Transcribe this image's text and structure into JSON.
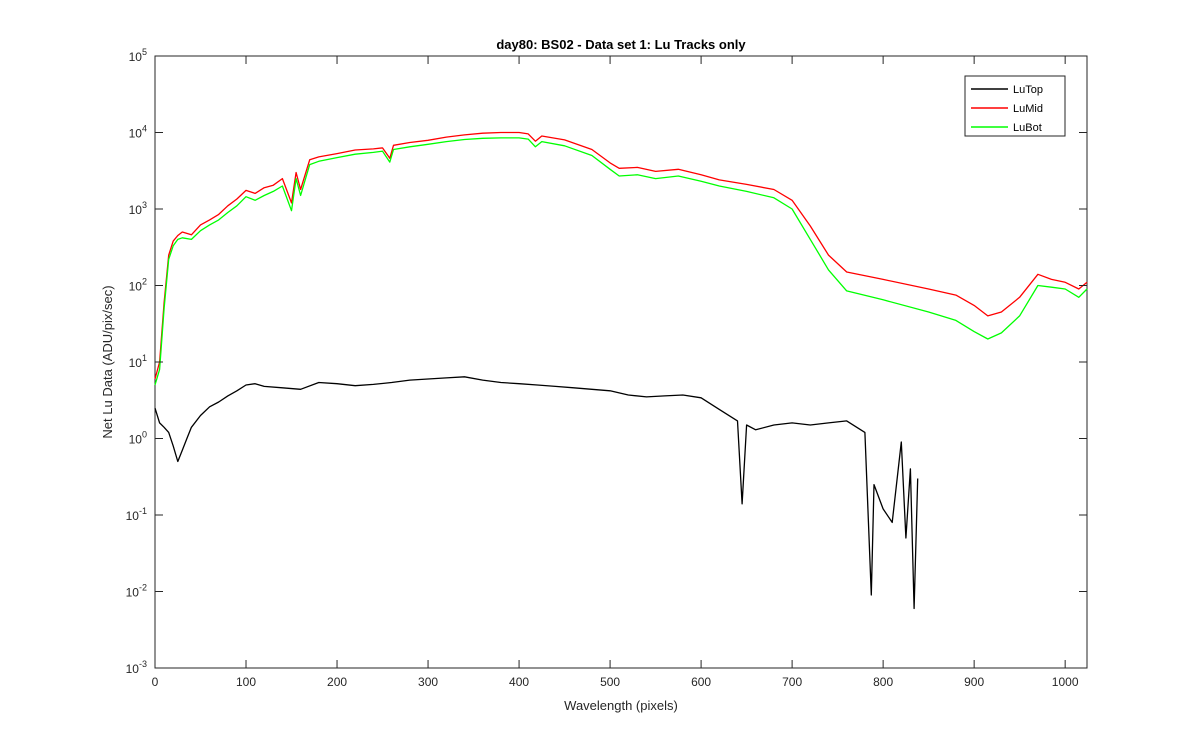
{
  "chart_data": {
    "type": "line",
    "title": "day80: BS02 - Data set 1: Lu Tracks only",
    "xlabel": "Wavelength (pixels)",
    "ylabel": "Net Lu Data (ADU/pix/sec)",
    "xlim": [
      0,
      1024
    ],
    "ylim": [
      0.001,
      100000
    ],
    "y_scale": "log",
    "xticks": [
      0,
      100,
      200,
      300,
      400,
      500,
      600,
      700,
      800,
      900,
      1000
    ],
    "yticks": [
      {
        "value": 0.001,
        "base": "10",
        "exp": "-3"
      },
      {
        "value": 0.01,
        "base": "10",
        "exp": "-2"
      },
      {
        "value": 0.1,
        "base": "10",
        "exp": "-1"
      },
      {
        "value": 1,
        "base": "10",
        "exp": "0"
      },
      {
        "value": 10,
        "base": "10",
        "exp": "1"
      },
      {
        "value": 100,
        "base": "10",
        "exp": "2"
      },
      {
        "value": 1000,
        "base": "10",
        "exp": "3"
      },
      {
        "value": 10000,
        "base": "10",
        "exp": "4"
      },
      {
        "value": 100000,
        "base": "10",
        "exp": "5"
      }
    ],
    "grid": false,
    "legend": "top-right",
    "series": [
      {
        "name": "LuTop",
        "color": "#000000",
        "x": [
          0,
          5,
          10,
          15,
          20,
          25,
          30,
          35,
          40,
          50,
          60,
          70,
          80,
          90,
          100,
          110,
          120,
          140,
          160,
          180,
          200,
          220,
          240,
          260,
          280,
          300,
          320,
          340,
          360,
          380,
          400,
          420,
          440,
          460,
          480,
          500,
          520,
          540,
          560,
          580,
          600,
          620,
          640,
          645,
          650,
          660,
          680,
          700,
          720,
          740,
          760,
          780,
          787,
          790,
          800,
          810,
          820,
          825,
          830,
          834,
          838
        ],
        "y": [
          2.5,
          1.6,
          1.4,
          1.2,
          0.8,
          0.5,
          0.7,
          1.0,
          1.4,
          2.0,
          2.6,
          3.0,
          3.6,
          4.2,
          5.0,
          5.2,
          4.8,
          4.6,
          4.4,
          5.4,
          5.2,
          4.9,
          5.1,
          5.4,
          5.8,
          6.0,
          6.2,
          6.4,
          5.8,
          5.4,
          5.2,
          5.0,
          4.8,
          4.6,
          4.4,
          4.2,
          3.7,
          3.5,
          3.6,
          3.7,
          3.4,
          2.4,
          1.7,
          0.14,
          1.5,
          1.3,
          1.5,
          1.6,
          1.5,
          1.6,
          1.7,
          1.2,
          0.009,
          0.25,
          0.12,
          0.08,
          0.9,
          0.05,
          0.4,
          0.006,
          0.3
        ]
      },
      {
        "name": "LuMid",
        "color": "#ff0000",
        "x": [
          0,
          5,
          10,
          15,
          20,
          25,
          30,
          40,
          50,
          60,
          70,
          80,
          90,
          100,
          110,
          120,
          130,
          140,
          150,
          155,
          160,
          170,
          180,
          200,
          220,
          240,
          250,
          258,
          262,
          280,
          300,
          320,
          340,
          360,
          380,
          400,
          410,
          418,
          425,
          450,
          480,
          500,
          510,
          530,
          550,
          575,
          600,
          620,
          650,
          680,
          700,
          720,
          740,
          760,
          800,
          850,
          880,
          900,
          915,
          930,
          950,
          970,
          985,
          1000,
          1015,
          1024
        ],
        "y": [
          6,
          10,
          60,
          250,
          380,
          450,
          500,
          460,
          620,
          720,
          850,
          1100,
          1350,
          1750,
          1600,
          1900,
          2050,
          2500,
          1200,
          3000,
          1800,
          4400,
          4800,
          5300,
          5900,
          6100,
          6300,
          4600,
          6800,
          7400,
          7900,
          8700,
          9300,
          9800,
          10000,
          10000,
          9600,
          7700,
          9000,
          8000,
          6000,
          4000,
          3400,
          3500,
          3100,
          3300,
          2800,
          2400,
          2100,
          1800,
          1300,
          600,
          250,
          150,
          120,
          90,
          75,
          55,
          40,
          45,
          70,
          140,
          120,
          110,
          90,
          110
        ]
      },
      {
        "name": "LuBot",
        "color": "#00ff00",
        "x": [
          0,
          5,
          10,
          15,
          20,
          25,
          30,
          40,
          50,
          60,
          70,
          80,
          90,
          100,
          110,
          120,
          130,
          140,
          150,
          155,
          160,
          170,
          180,
          200,
          220,
          240,
          250,
          258,
          262,
          280,
          300,
          320,
          340,
          360,
          380,
          400,
          410,
          418,
          425,
          450,
          480,
          500,
          510,
          530,
          550,
          575,
          600,
          620,
          650,
          680,
          700,
          720,
          740,
          760,
          800,
          850,
          880,
          900,
          915,
          930,
          950,
          970,
          985,
          1000,
          1015,
          1024
        ],
        "y": [
          5,
          8,
          50,
          220,
          330,
          400,
          420,
          400,
          520,
          620,
          720,
          900,
          1100,
          1450,
          1300,
          1500,
          1700,
          2000,
          950,
          2500,
          1500,
          3800,
          4200,
          4700,
          5200,
          5500,
          5700,
          4100,
          6000,
          6500,
          7000,
          7600,
          8100,
          8400,
          8500,
          8500,
          8200,
          6500,
          7600,
          6700,
          5000,
          3300,
          2700,
          2800,
          2500,
          2700,
          2300,
          2000,
          1700,
          1400,
          1000,
          400,
          160,
          85,
          65,
          45,
          35,
          25,
          20,
          24,
          40,
          100,
          95,
          90,
          70,
          90
        ]
      }
    ]
  }
}
